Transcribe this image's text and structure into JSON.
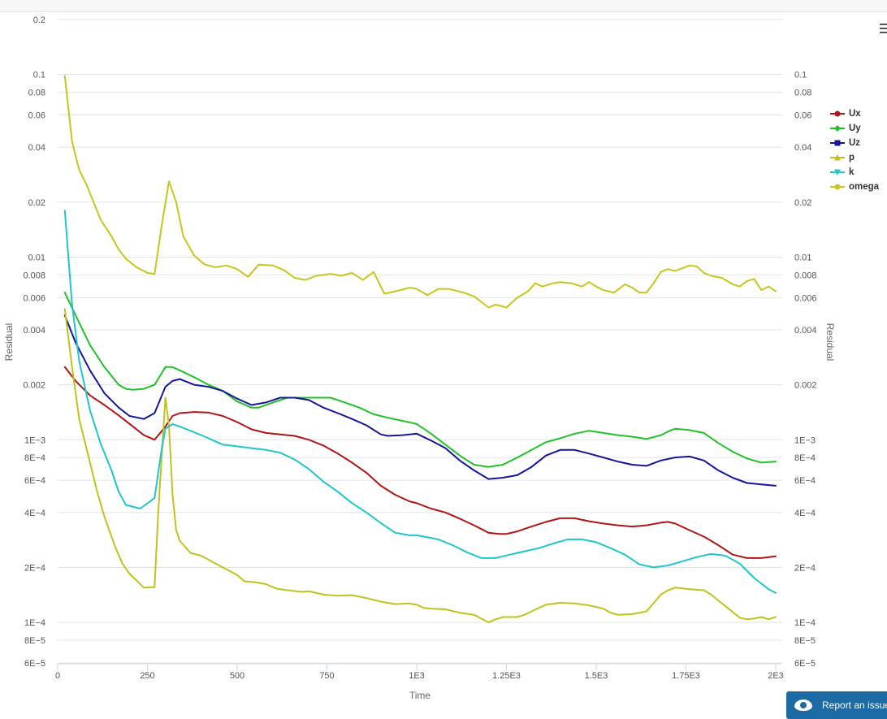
{
  "chart_data": {
    "type": "line",
    "xlabel": "Time",
    "ylabel": "Residual",
    "y2label": "Residual",
    "yscale": "log",
    "xlim": [
      0,
      2000
    ],
    "ylim": [
      6e-05,
      0.2
    ],
    "grid": true,
    "legend_position": "right",
    "x_ticks": [
      {
        "value": 0,
        "label": "0"
      },
      {
        "value": 250,
        "label": "250"
      },
      {
        "value": 500,
        "label": "500"
      },
      {
        "value": 750,
        "label": "750"
      },
      {
        "value": 1000,
        "label": "1E3"
      },
      {
        "value": 1250,
        "label": "1.25E3"
      },
      {
        "value": 1500,
        "label": "1.5E3"
      },
      {
        "value": 1750,
        "label": "1.75E3"
      },
      {
        "value": 2000,
        "label": "2E3"
      }
    ],
    "y_ticks_left": [
      {
        "value": 0.2,
        "label": "0.2"
      },
      {
        "value": 0.1,
        "label": "0.1"
      },
      {
        "value": 0.08,
        "label": "0.08"
      },
      {
        "value": 0.06,
        "label": "0.06"
      },
      {
        "value": 0.04,
        "label": "0.04"
      },
      {
        "value": 0.02,
        "label": "0.02"
      },
      {
        "value": 0.01,
        "label": "0.01"
      },
      {
        "value": 0.008,
        "label": "0.008"
      },
      {
        "value": 0.006,
        "label": "0.006"
      },
      {
        "value": 0.004,
        "label": "0.004"
      },
      {
        "value": 0.002,
        "label": "0.002"
      },
      {
        "value": 0.001,
        "label": "1E−3"
      },
      {
        "value": 0.0008,
        "label": "8E−4"
      },
      {
        "value": 0.0006,
        "label": "6E−4"
      },
      {
        "value": 0.0004,
        "label": "4E−4"
      },
      {
        "value": 0.0002,
        "label": "2E−4"
      },
      {
        "value": 0.0001,
        "label": "1E−4"
      },
      {
        "value": 8e-05,
        "label": "8E−5"
      },
      {
        "value": 6e-05,
        "label": "6E−5"
      }
    ],
    "y_ticks_right": [
      {
        "value": 0.1,
        "label": "0.1"
      },
      {
        "value": 0.08,
        "label": "0.08"
      },
      {
        "value": 0.06,
        "label": "0.06"
      },
      {
        "value": 0.04,
        "label": "0.04"
      },
      {
        "value": 0.02,
        "label": "0.02"
      },
      {
        "value": 0.01,
        "label": "0.01"
      },
      {
        "value": 0.008,
        "label": "0.008"
      },
      {
        "value": 0.006,
        "label": "0.006"
      },
      {
        "value": 0.004,
        "label": "0.004"
      },
      {
        "value": 0.002,
        "label": "0.002"
      },
      {
        "value": 0.001,
        "label": "1E−3"
      },
      {
        "value": 0.0008,
        "label": "8E−4"
      },
      {
        "value": 0.0006,
        "label": "6E−4"
      },
      {
        "value": 0.0004,
        "label": "4E−4"
      },
      {
        "value": 0.0002,
        "label": "2E−4"
      },
      {
        "value": 0.0001,
        "label": "1E−4"
      },
      {
        "value": 8e-05,
        "label": "8E−5"
      },
      {
        "value": 6e-05,
        "label": "6E−5"
      }
    ],
    "series": [
      {
        "name": "Ux",
        "color": "#b01515",
        "marker": "circle",
        "x": [
          20,
          50,
          90,
          130,
          170,
          210,
          240,
          270,
          300,
          320,
          340,
          380,
          420,
          460,
          500,
          540,
          580,
          620,
          660,
          700,
          740,
          780,
          820,
          860,
          900,
          940,
          980,
          1000,
          1040,
          1080,
          1120,
          1160,
          1200,
          1230,
          1250,
          1280,
          1320,
          1360,
          1400,
          1440,
          1480,
          1520,
          1560,
          1600,
          1640,
          1680,
          1700,
          1720,
          1760,
          1800,
          1840,
          1880,
          1920,
          1960,
          2000
        ],
        "y": [
          0.0025,
          0.0021,
          0.00175,
          0.00155,
          0.00136,
          0.00118,
          0.00106,
          0.001,
          0.00118,
          0.00135,
          0.0014,
          0.00142,
          0.00141,
          0.00135,
          0.00125,
          0.00114,
          0.00109,
          0.00107,
          0.00105,
          0.001,
          0.00093,
          0.00084,
          0.00075,
          0.00066,
          0.00056,
          0.0005,
          0.00046,
          0.00045,
          0.00042,
          0.0004,
          0.00037,
          0.00034,
          0.00031,
          0.000305,
          0.000305,
          0.000315,
          0.000335,
          0.000355,
          0.000372,
          0.000372,
          0.000358,
          0.000348,
          0.00034,
          0.000335,
          0.00034,
          0.000352,
          0.000355,
          0.000348,
          0.00032,
          0.000295,
          0.000265,
          0.000235,
          0.000225,
          0.000225,
          0.00023
        ]
      },
      {
        "name": "Uy",
        "color": "#22c02a",
        "marker": "diamond",
        "x": [
          20,
          50,
          90,
          130,
          170,
          190,
          210,
          240,
          270,
          300,
          320,
          340,
          380,
          420,
          460,
          500,
          540,
          560,
          600,
          640,
          680,
          720,
          760,
          800,
          840,
          880,
          920,
          960,
          1000,
          1040,
          1080,
          1120,
          1160,
          1200,
          1240,
          1280,
          1320,
          1360,
          1400,
          1440,
          1480,
          1520,
          1560,
          1600,
          1640,
          1680,
          1700,
          1720,
          1760,
          1800,
          1840,
          1880,
          1920,
          1960,
          2000
        ],
        "y": [
          0.0064,
          0.0048,
          0.0033,
          0.0025,
          0.002,
          0.0019,
          0.00188,
          0.0019,
          0.002,
          0.0025,
          0.0025,
          0.0024,
          0.0022,
          0.002,
          0.00185,
          0.00162,
          0.0015,
          0.0015,
          0.0016,
          0.0017,
          0.0017,
          0.0017,
          0.0017,
          0.0016,
          0.0015,
          0.00138,
          0.00132,
          0.00127,
          0.00122,
          0.00108,
          0.00094,
          0.00082,
          0.00073,
          0.00071,
          0.00073,
          0.0008,
          0.00088,
          0.00097,
          0.00102,
          0.00108,
          0.00112,
          0.00109,
          0.00106,
          0.00104,
          0.00101,
          0.00106,
          0.00111,
          0.00115,
          0.00113,
          0.00109,
          0.00096,
          0.00086,
          0.00079,
          0.00075,
          0.00076
        ]
      },
      {
        "name": "Uz",
        "color": "#16169a",
        "marker": "square",
        "x": [
          20,
          50,
          90,
          130,
          170,
          200,
          240,
          270,
          300,
          320,
          340,
          380,
          420,
          460,
          500,
          540,
          580,
          620,
          660,
          700,
          740,
          780,
          820,
          860,
          900,
          920,
          960,
          1000,
          1040,
          1080,
          1120,
          1160,
          1200,
          1240,
          1280,
          1320,
          1360,
          1400,
          1440,
          1480,
          1520,
          1560,
          1600,
          1640,
          1680,
          1720,
          1760,
          1800,
          1840,
          1880,
          1920,
          1960,
          2000
        ],
        "y": [
          0.0048,
          0.0034,
          0.0024,
          0.0018,
          0.0015,
          0.00135,
          0.0013,
          0.0014,
          0.00195,
          0.0021,
          0.00215,
          0.002,
          0.00195,
          0.00185,
          0.00168,
          0.00155,
          0.0016,
          0.0017,
          0.0017,
          0.00165,
          0.0015,
          0.0014,
          0.0013,
          0.0012,
          0.00107,
          0.00105,
          0.00106,
          0.00108,
          0.00099,
          0.0009,
          0.00077,
          0.00068,
          0.00061,
          0.00062,
          0.00064,
          0.00071,
          0.00082,
          0.00088,
          0.00088,
          0.00084,
          0.0008,
          0.00076,
          0.00073,
          0.00072,
          0.00077,
          0.0008,
          0.00081,
          0.00077,
          0.00068,
          0.00062,
          0.00058,
          0.00057,
          0.00056
        ]
      },
      {
        "name": "p",
        "color": "#c2c21f",
        "marker": "triangle",
        "x": [
          20,
          40,
          60,
          90,
          110,
          130,
          160,
          180,
          200,
          240,
          270,
          280,
          300,
          310,
          320,
          330,
          340,
          370,
          400,
          430,
          460,
          500,
          520,
          550,
          580,
          610,
          640,
          680,
          700,
          740,
          780,
          820,
          860,
          900,
          940,
          980,
          1000,
          1020,
          1040,
          1080,
          1120,
          1160,
          1200,
          1220,
          1240,
          1280,
          1300,
          1320,
          1340,
          1360,
          1400,
          1440,
          1480,
          1520,
          1540,
          1560,
          1600,
          1640,
          1680,
          1700,
          1720,
          1760,
          1800,
          1820,
          1840,
          1880,
          1900,
          1920,
          1940,
          1960,
          1980,
          2000
        ],
        "y": [
          0.0052,
          0.0025,
          0.0013,
          0.00075,
          0.00052,
          0.00038,
          0.00026,
          0.00021,
          0.000185,
          0.000155,
          0.000156,
          0.0004,
          0.0017,
          0.0012,
          0.0005,
          0.00032,
          0.00028,
          0.00024,
          0.000232,
          0.000215,
          0.0002,
          0.000182,
          0.000168,
          0.000166,
          0.000162,
          0.000153,
          0.00015,
          0.000147,
          0.000148,
          0.000142,
          0.00014,
          0.000141,
          0.000136,
          0.00013,
          0.000126,
          0.000127,
          0.000125,
          0.00012,
          0.000119,
          0.000118,
          0.000113,
          0.00011,
          0.0001,
          0.000104,
          0.000107,
          0.000107,
          0.00011,
          0.000115,
          0.00012,
          0.000125,
          0.000128,
          0.000127,
          0.000124,
          0.000119,
          0.000113,
          0.00011,
          0.000111,
          0.000115,
          0.000142,
          0.00015,
          0.000155,
          0.000152,
          0.00015,
          0.000142,
          0.000132,
          0.000114,
          0.000106,
          0.000104,
          0.000105,
          0.000107,
          0.000104,
          0.000107
        ]
      },
      {
        "name": "k",
        "color": "#1fc6cc",
        "marker": "triangle-down",
        "x": [
          20,
          40,
          60,
          90,
          120,
          150,
          170,
          190,
          230,
          270,
          290,
          300,
          320,
          340,
          380,
          420,
          460,
          500,
          540,
          580,
          620,
          660,
          700,
          740,
          780,
          820,
          860,
          900,
          940,
          980,
          1000,
          1020,
          1060,
          1100,
          1140,
          1180,
          1220,
          1260,
          1300,
          1340,
          1380,
          1420,
          1460,
          1500,
          1540,
          1580,
          1620,
          1660,
          1700,
          1740,
          1780,
          1820,
          1860,
          1900,
          1940,
          1980,
          2000
        ],
        "y": [
          0.018,
          0.0055,
          0.0027,
          0.00145,
          0.00095,
          0.00068,
          0.00052,
          0.00044,
          0.00042,
          0.00048,
          0.0009,
          0.00115,
          0.00122,
          0.00118,
          0.0011,
          0.00102,
          0.00094,
          0.00092,
          0.0009,
          0.00088,
          0.00085,
          0.00078,
          0.00069,
          0.00059,
          0.00052,
          0.00045,
          0.0004,
          0.00035,
          0.00031,
          0.0003,
          0.0003,
          0.000295,
          0.000285,
          0.000265,
          0.000242,
          0.000225,
          0.000225,
          0.000235,
          0.000245,
          0.000255,
          0.00027,
          0.000285,
          0.000285,
          0.000275,
          0.000255,
          0.000235,
          0.000208,
          0.0002,
          0.000205,
          0.000216,
          0.000228,
          0.000237,
          0.000232,
          0.00021,
          0.000175,
          0.000152,
          0.000145
        ]
      },
      {
        "name": "omega",
        "color": "#c8c61c",
        "marker": "circle",
        "x": [
          20,
          40,
          60,
          80,
          100,
          120,
          150,
          170,
          190,
          220,
          250,
          270,
          290,
          310,
          330,
          350,
          380,
          410,
          440,
          470,
          500,
          530,
          560,
          600,
          630,
          660,
          690,
          720,
          760,
          790,
          820,
          850,
          880,
          910,
          940,
          980,
          1000,
          1030,
          1060,
          1090,
          1130,
          1160,
          1200,
          1220,
          1250,
          1280,
          1310,
          1330,
          1350,
          1380,
          1400,
          1430,
          1460,
          1480,
          1500,
          1520,
          1550,
          1580,
          1600,
          1620,
          1640,
          1660,
          1680,
          1700,
          1720,
          1740,
          1760,
          1780,
          1800,
          1820,
          1850,
          1880,
          1900,
          1920,
          1940,
          1960,
          1980,
          2000
        ],
        "y": [
          0.098,
          0.043,
          0.03,
          0.025,
          0.02,
          0.016,
          0.013,
          0.011,
          0.0098,
          0.0088,
          0.0082,
          0.0081,
          0.015,
          0.026,
          0.02,
          0.013,
          0.0102,
          0.0091,
          0.0088,
          0.009,
          0.0086,
          0.0078,
          0.0091,
          0.009,
          0.0085,
          0.0077,
          0.0075,
          0.0079,
          0.0081,
          0.0079,
          0.0082,
          0.0075,
          0.0083,
          0.0063,
          0.0065,
          0.0068,
          0.0067,
          0.0062,
          0.0067,
          0.0067,
          0.0064,
          0.0061,
          0.0053,
          0.0055,
          0.0053,
          0.006,
          0.0065,
          0.0072,
          0.0069,
          0.0072,
          0.0073,
          0.0072,
          0.0069,
          0.0073,
          0.0069,
          0.0066,
          0.0064,
          0.0071,
          0.0068,
          0.0064,
          0.0064,
          0.0072,
          0.0083,
          0.0086,
          0.0084,
          0.0087,
          0.009,
          0.0089,
          0.0082,
          0.0079,
          0.0077,
          0.0071,
          0.0069,
          0.0074,
          0.0076,
          0.0066,
          0.0069,
          0.0065
        ]
      }
    ]
  },
  "ui": {
    "report_button_label": "Report an issue",
    "menu_icon": "hamburger-menu-icon",
    "report_icon": "eye-icon"
  }
}
